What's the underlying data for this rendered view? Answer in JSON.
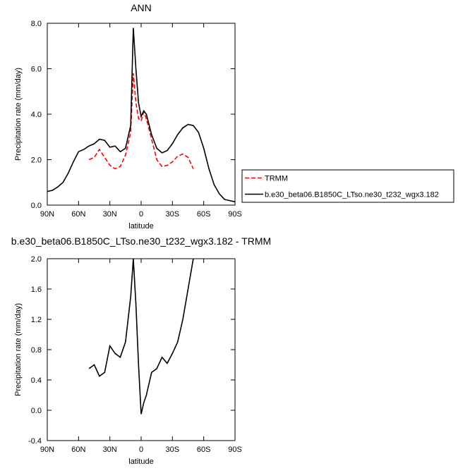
{
  "chart_data": [
    {
      "type": "line",
      "title": "ANN",
      "xlabel": "latitude",
      "ylabel": "Precipitation rate (mm/day)",
      "x": [
        90,
        85,
        80,
        75,
        70,
        65,
        60,
        55,
        50,
        45,
        40,
        35,
        30,
        25,
        20,
        15,
        10,
        7.5,
        5,
        2.5,
        0,
        -2.5,
        -5,
        -10,
        -15,
        -20,
        -25,
        -30,
        -35,
        -40,
        -45,
        -50,
        -55,
        -60,
        -65,
        -70,
        -75,
        -80,
        -85,
        -90
      ],
      "series": [
        {
          "name": "TRMM",
          "color": "#ff0000",
          "dash": true,
          "values": [
            null,
            null,
            null,
            null,
            null,
            null,
            null,
            null,
            2.0,
            2.1,
            2.45,
            2.1,
            1.75,
            1.6,
            1.7,
            2.2,
            3.2,
            5.8,
            4.5,
            3.8,
            3.7,
            4.1,
            3.8,
            2.9,
            2.0,
            1.7,
            1.75,
            1.9,
            2.15,
            2.25,
            2.1,
            1.6,
            null,
            null,
            null,
            null,
            null,
            null,
            null,
            null
          ]
        },
        {
          "name": "b.e30_beta06.B1850C_LTso.ne30_t232_wgx3.182",
          "color": "#000000",
          "dash": false,
          "values": [
            0.6,
            0.65,
            0.8,
            1.0,
            1.4,
            1.9,
            2.35,
            2.45,
            2.6,
            2.7,
            2.9,
            2.85,
            2.55,
            2.6,
            2.35,
            2.5,
            3.5,
            7.8,
            6.0,
            4.5,
            3.9,
            4.15,
            4.0,
            3.1,
            2.5,
            2.3,
            2.4,
            2.7,
            3.1,
            3.4,
            3.55,
            3.5,
            3.2,
            2.5,
            1.6,
            0.9,
            0.5,
            0.25,
            0.2,
            0.15
          ]
        }
      ],
      "xlim": [
        90,
        -90
      ],
      "xticks": [
        {
          "value": 90,
          "label": "90N"
        },
        {
          "value": 60,
          "label": "60N"
        },
        {
          "value": 30,
          "label": "30N"
        },
        0,
        {
          "value": -30,
          "label": "30S"
        },
        {
          "value": -60,
          "label": "60S"
        },
        {
          "value": -90,
          "label": "90S"
        }
      ],
      "ylim": [
        0,
        8
      ],
      "yticks": [
        {
          "value": 0,
          "label": "0.0"
        },
        {
          "value": 2,
          "label": "2.0"
        },
        {
          "value": 4,
          "label": "4.0"
        },
        {
          "value": 6,
          "label": "6.0"
        },
        {
          "value": 8,
          "label": "8.0"
        }
      ],
      "legend": "outside-right"
    },
    {
      "type": "line",
      "title": "b.e30_beta06.B1850C_LTso.ne30_t232_wgx3.182 - TRMM",
      "xlabel": "latitude",
      "ylabel": "Precipitation rate (mm/day)",
      "x": [
        50,
        45,
        40,
        35,
        30,
        25,
        20,
        15,
        10,
        7.5,
        5,
        2.5,
        0,
        -2.5,
        -5,
        -10,
        -15,
        -20,
        -25,
        -30,
        -35,
        -40,
        -45,
        -50
      ],
      "series": [
        {
          "color": "#000000",
          "dash": false,
          "values": [
            0.55,
            0.6,
            0.45,
            0.5,
            0.85,
            0.75,
            0.7,
            0.9,
            1.5,
            2.0,
            1.4,
            0.6,
            -0.05,
            0.1,
            0.2,
            0.5,
            0.55,
            0.7,
            0.62,
            0.75,
            0.9,
            1.2,
            1.6,
            2.0
          ]
        }
      ],
      "xlim": [
        90,
        -90
      ],
      "xticks": [
        {
          "value": 90,
          "label": "90N"
        },
        {
          "value": 60,
          "label": "60N"
        },
        {
          "value": 30,
          "label": "30N"
        },
        0,
        {
          "value": -30,
          "label": "30S"
        },
        {
          "value": -60,
          "label": "60S"
        },
        {
          "value": -90,
          "label": "90S"
        }
      ],
      "ylim": [
        -0.4,
        2.0
      ],
      "yticks": [
        {
          "value": -0.4,
          "label": "-0.4"
        },
        {
          "value": 0,
          "label": "0.0"
        },
        {
          "value": 0.4,
          "label": "0.4"
        },
        {
          "value": 0.8,
          "label": "0.8"
        },
        {
          "value": 1.2,
          "label": "1.2"
        },
        {
          "value": 1.6,
          "label": "1.6"
        },
        {
          "value": 2.0,
          "label": "2.0"
        }
      ]
    }
  ]
}
